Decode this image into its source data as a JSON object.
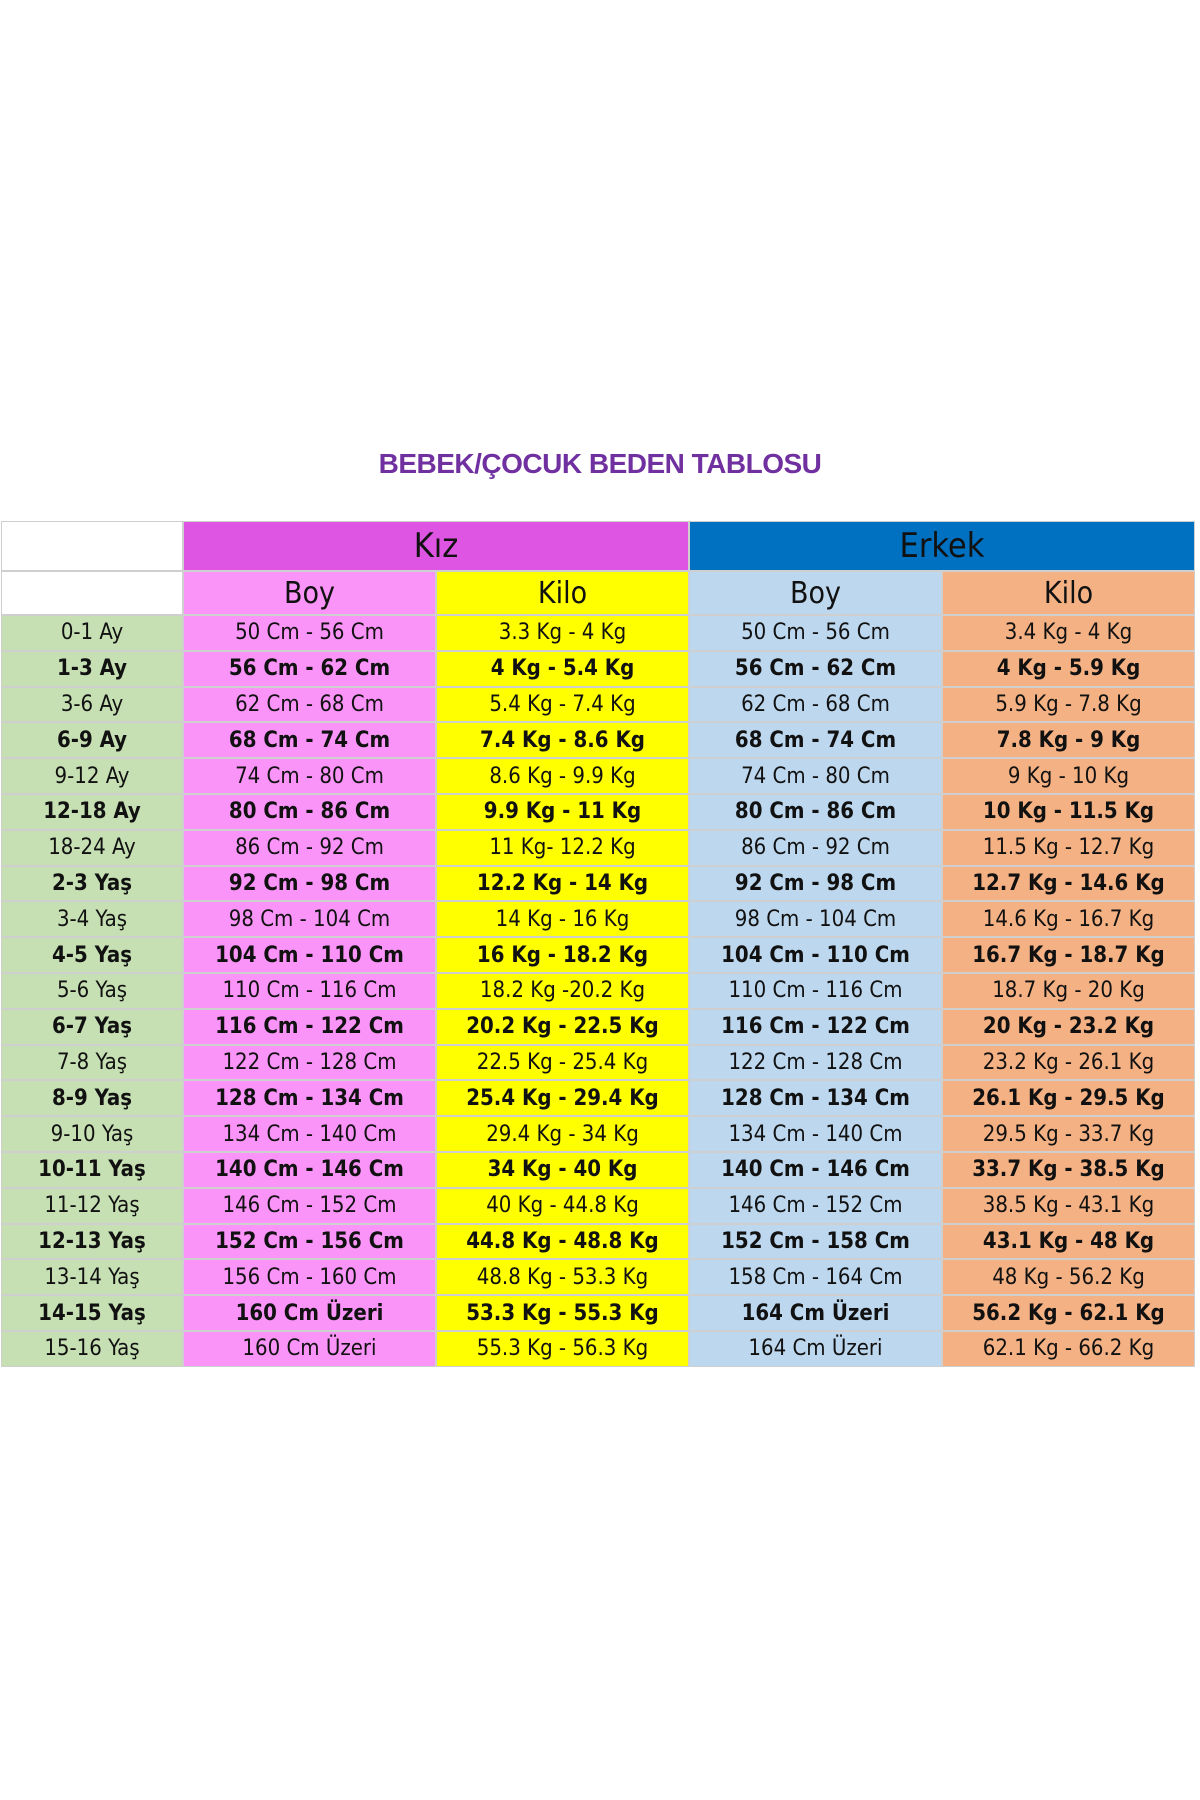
{
  "title": "BEBEK/ÇOCUK BEDEN TABLOSU",
  "groups": {
    "girl": "Kız",
    "boy": "Erkek"
  },
  "subheaders": {
    "girl_height": "Boy",
    "girl_weight": "Kilo",
    "boy_height": "Boy",
    "boy_weight": "Kilo"
  },
  "colors": {
    "title": "#7030a0",
    "girl_header": "#dd55e2",
    "boy_header": "#0070c0",
    "age": "#c6e0b4",
    "girl_height": "#fa94f8",
    "girl_weight": "#ffff00",
    "boy_height": "#bdd7ee",
    "boy_weight": "#f4b183"
  },
  "rows": [
    [
      "0-1 Ay",
      "50 Cm - 56 Cm",
      "3.3 Kg - 4 Kg",
      "50 Cm - 56 Cm",
      "3.4 Kg - 4 Kg"
    ],
    [
      "1-3 Ay",
      "56 Cm - 62 Cm",
      "4 Kg - 5.4 Kg",
      "56 Cm - 62 Cm",
      "4 Kg - 5.9 Kg"
    ],
    [
      "3-6 Ay",
      "62 Cm - 68 Cm",
      "5.4 Kg - 7.4 Kg",
      "62 Cm - 68 Cm",
      "5.9 Kg - 7.8 Kg"
    ],
    [
      "6-9 Ay",
      "68 Cm - 74 Cm",
      "7.4 Kg - 8.6 Kg",
      "68 Cm - 74 Cm",
      "7.8 Kg - 9 Kg"
    ],
    [
      "9-12 Ay",
      "74 Cm - 80 Cm",
      "8.6 Kg - 9.9 Kg",
      "74 Cm - 80 Cm",
      "9 Kg - 10 Kg"
    ],
    [
      "12-18 Ay",
      "80 Cm - 86 Cm",
      "9.9 Kg - 11 Kg",
      "80 Cm - 86 Cm",
      "10 Kg - 11.5 Kg"
    ],
    [
      "18-24 Ay",
      "86 Cm - 92 Cm",
      "11 Kg- 12.2 Kg",
      "86 Cm - 92 Cm",
      "11.5 Kg - 12.7 Kg"
    ],
    [
      "2-3 Yaş",
      "92 Cm - 98 Cm",
      "12.2 Kg - 14 Kg",
      "92 Cm - 98 Cm",
      "12.7 Kg - 14.6 Kg"
    ],
    [
      "3-4 Yaş",
      "98 Cm - 104 Cm",
      "14 Kg - 16 Kg",
      "98 Cm - 104 Cm",
      "14.6 Kg - 16.7 Kg"
    ],
    [
      "4-5 Yaş",
      "104 Cm - 110 Cm",
      "16 Kg - 18.2 Kg",
      "104 Cm - 110 Cm",
      "16.7 Kg - 18.7 Kg"
    ],
    [
      "5-6 Yaş",
      "110 Cm - 116 Cm",
      "18.2 Kg -20.2 Kg",
      "110 Cm - 116 Cm",
      "18.7 Kg - 20 Kg"
    ],
    [
      "6-7 Yaş",
      "116 Cm - 122 Cm",
      "20.2 Kg - 22.5 Kg",
      "116 Cm - 122 Cm",
      "20 Kg - 23.2 Kg"
    ],
    [
      "7-8 Yaş",
      "122 Cm - 128 Cm",
      "22.5 Kg - 25.4 Kg",
      "122 Cm - 128 Cm",
      "23.2 Kg - 26.1 Kg"
    ],
    [
      "8-9 Yaş",
      "128 Cm - 134 Cm",
      "25.4 Kg - 29.4 Kg",
      "128 Cm - 134 Cm",
      "26.1 Kg - 29.5 Kg"
    ],
    [
      "9-10 Yaş",
      "134 Cm - 140 Cm",
      "29.4 Kg - 34 Kg",
      "134 Cm - 140 Cm",
      "29.5 Kg - 33.7 Kg"
    ],
    [
      "10-11 Yaş",
      "140 Cm - 146 Cm",
      "34 Kg - 40 Kg",
      "140 Cm - 146 Cm",
      "33.7 Kg - 38.5 Kg"
    ],
    [
      "11-12 Yaş",
      "146 Cm - 152 Cm",
      "40 Kg - 44.8 Kg",
      "146 Cm - 152 Cm",
      "38.5 Kg - 43.1 Kg"
    ],
    [
      "12-13 Yaş",
      "152 Cm - 156 Cm",
      "44.8 Kg - 48.8 Kg",
      "152 Cm - 158 Cm",
      "43.1 Kg - 48 Kg"
    ],
    [
      "13-14 Yaş",
      "156 Cm - 160 Cm",
      "48.8 Kg - 53.3 Kg",
      "158 Cm - 164 Cm",
      "48 Kg - 56.2 Kg"
    ],
    [
      "14-15 Yaş",
      "160 Cm Üzeri",
      "53.3 Kg - 55.3 Kg",
      "164 Cm Üzeri",
      "56.2 Kg - 62.1 Kg"
    ],
    [
      "15-16 Yaş",
      "160 Cm Üzeri",
      "55.3 Kg - 56.3 Kg",
      "164 Cm Üzeri",
      "62.1 Kg - 66.2 Kg"
    ]
  ]
}
